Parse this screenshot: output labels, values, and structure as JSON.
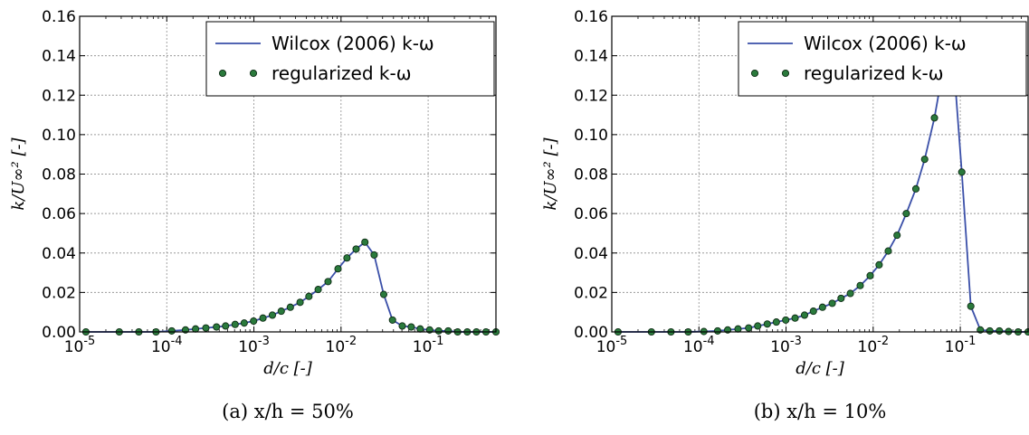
{
  "chart_data": [
    {
      "type": "line",
      "caption": "(a) x/h = 50%",
      "xlabel": "d/c [-]",
      "ylabel": "k/U∞² [-]",
      "xscale": "log",
      "xlim": [
        1e-05,
        0.6
      ],
      "ylim": [
        0,
        0.16
      ],
      "grid": true,
      "legend_position": "top-right",
      "x_ticks": [
        "10-5",
        "10-4",
        "10-3",
        "10-2",
        "10-1"
      ],
      "y_ticks": [
        "0.00",
        "0.02",
        "0.04",
        "0.06",
        "0.08",
        "0.10",
        "0.12",
        "0.14",
        "0.16"
      ],
      "series": [
        {
          "name": "Wilcox (2006) k-ω",
          "style": "line",
          "color": "#3a4fa8",
          "x": [
            1.18e-05,
            2.85e-05,
            4.78e-05,
            7.53e-05,
            0.000114,
            0.000164,
            0.000214,
            0.000281,
            0.000372,
            0.000473,
            0.000609,
            0.000774,
            0.000992,
            0.00127,
            0.00163,
            0.00206,
            0.00262,
            0.00339,
            0.00428,
            0.00547,
            0.0071,
            0.00924,
            0.0117,
            0.0149,
            0.0188,
            0.024,
            0.0309,
            0.039,
            0.0505,
            0.0639,
            0.0811,
            0.104,
            0.132,
            0.17,
            0.218,
            0.281,
            0.358,
            0.461,
            0.6
          ],
          "y": [
            0.0,
            0.0,
            0.0,
            0.0,
            0.0005,
            0.001,
            0.0015,
            0.002,
            0.0025,
            0.003,
            0.0038,
            0.0045,
            0.0055,
            0.007,
            0.0085,
            0.0105,
            0.0125,
            0.015,
            0.018,
            0.0215,
            0.0255,
            0.032,
            0.0375,
            0.042,
            0.0455,
            0.039,
            0.019,
            0.006,
            0.003,
            0.0025,
            0.0015,
            0.001,
            0.0005,
            0.0005,
            0.0,
            0.0,
            0.0,
            0.0,
            0.0
          ]
        },
        {
          "name": "regularized k-ω",
          "style": "markers",
          "color": "#2a7a3c",
          "x": [
            1.18e-05,
            2.85e-05,
            4.78e-05,
            7.53e-05,
            0.000114,
            0.000164,
            0.000214,
            0.000281,
            0.000372,
            0.000473,
            0.000609,
            0.000774,
            0.000992,
            0.00127,
            0.00163,
            0.00206,
            0.00262,
            0.00339,
            0.00428,
            0.00547,
            0.0071,
            0.00924,
            0.0117,
            0.0149,
            0.0188,
            0.024,
            0.0309,
            0.039,
            0.0505,
            0.0639,
            0.0811,
            0.104,
            0.132,
            0.17,
            0.218,
            0.281,
            0.358,
            0.461,
            0.6
          ],
          "y": [
            0.0,
            0.0,
            0.0,
            0.0,
            0.0005,
            0.001,
            0.0015,
            0.002,
            0.0025,
            0.003,
            0.0038,
            0.0045,
            0.0055,
            0.007,
            0.0085,
            0.0105,
            0.0125,
            0.015,
            0.018,
            0.0215,
            0.0255,
            0.032,
            0.0375,
            0.042,
            0.0455,
            0.039,
            0.019,
            0.006,
            0.003,
            0.0025,
            0.0015,
            0.001,
            0.0005,
            0.0005,
            0.0,
            0.0,
            0.0,
            0.0,
            0.0
          ]
        }
      ]
    },
    {
      "type": "line",
      "caption": "(b) x/h = 10%",
      "xlabel": "d/c [-]",
      "ylabel": "k/U∞² [-]",
      "xscale": "log",
      "xlim": [
        1e-05,
        0.6
      ],
      "ylim": [
        0,
        0.16
      ],
      "grid": true,
      "legend_position": "top-right",
      "x_ticks": [
        "10-5",
        "10-4",
        "10-3",
        "10-2",
        "10-1"
      ],
      "y_ticks": [
        "0.00",
        "0.02",
        "0.04",
        "0.06",
        "0.08",
        "0.10",
        "0.12",
        "0.14",
        "0.16"
      ],
      "series": [
        {
          "name": "Wilcox (2006) k-ω",
          "style": "line",
          "color": "#3a4fa8",
          "x": [
            1.18e-05,
            2.85e-05,
            4.78e-05,
            7.53e-05,
            0.000114,
            0.000164,
            0.000214,
            0.000281,
            0.000372,
            0.000473,
            0.000609,
            0.000774,
            0.000992,
            0.00127,
            0.00163,
            0.00206,
            0.00262,
            0.00339,
            0.00428,
            0.00547,
            0.0071,
            0.00924,
            0.0117,
            0.0149,
            0.0188,
            0.024,
            0.0309,
            0.039,
            0.0505,
            0.0639,
            0.0811,
            0.104,
            0.132,
            0.17,
            0.218,
            0.281,
            0.358,
            0.461,
            0.6
          ],
          "y": [
            0.0,
            0.0,
            0.0,
            0.0,
            0.0002,
            0.0005,
            0.001,
            0.0015,
            0.002,
            0.003,
            0.004,
            0.005,
            0.006,
            0.007,
            0.0085,
            0.0105,
            0.0125,
            0.0145,
            0.017,
            0.0195,
            0.0235,
            0.0285,
            0.034,
            0.041,
            0.049,
            0.06,
            0.0725,
            0.0875,
            0.1085,
            0.134,
            0.145,
            0.081,
            0.013,
            0.001,
            0.0005,
            0.0005,
            0.0002,
            0.0,
            0.0
          ]
        },
        {
          "name": "regularized k-ω",
          "style": "markers",
          "color": "#2a7a3c",
          "x": [
            1.18e-05,
            2.85e-05,
            4.78e-05,
            7.53e-05,
            0.000114,
            0.000164,
            0.000214,
            0.000281,
            0.000372,
            0.000473,
            0.000609,
            0.000774,
            0.000992,
            0.00127,
            0.00163,
            0.00206,
            0.00262,
            0.00339,
            0.00428,
            0.00547,
            0.0071,
            0.00924,
            0.0117,
            0.0149,
            0.0188,
            0.024,
            0.0309,
            0.039,
            0.0505,
            0.0639,
            0.0811,
            0.104,
            0.132,
            0.17,
            0.218,
            0.281,
            0.358,
            0.461,
            0.6
          ],
          "y": [
            0.0,
            0.0,
            0.0,
            0.0,
            0.0002,
            0.0005,
            0.001,
            0.0015,
            0.002,
            0.003,
            0.004,
            0.005,
            0.006,
            0.007,
            0.0085,
            0.0105,
            0.0125,
            0.0145,
            0.017,
            0.0195,
            0.0235,
            0.0285,
            0.034,
            0.041,
            0.049,
            0.06,
            0.0725,
            0.0875,
            0.1085,
            0.134,
            0.145,
            0.081,
            0.013,
            0.001,
            0.0005,
            0.0005,
            0.0002,
            0.0,
            0.0
          ]
        }
      ]
    }
  ]
}
